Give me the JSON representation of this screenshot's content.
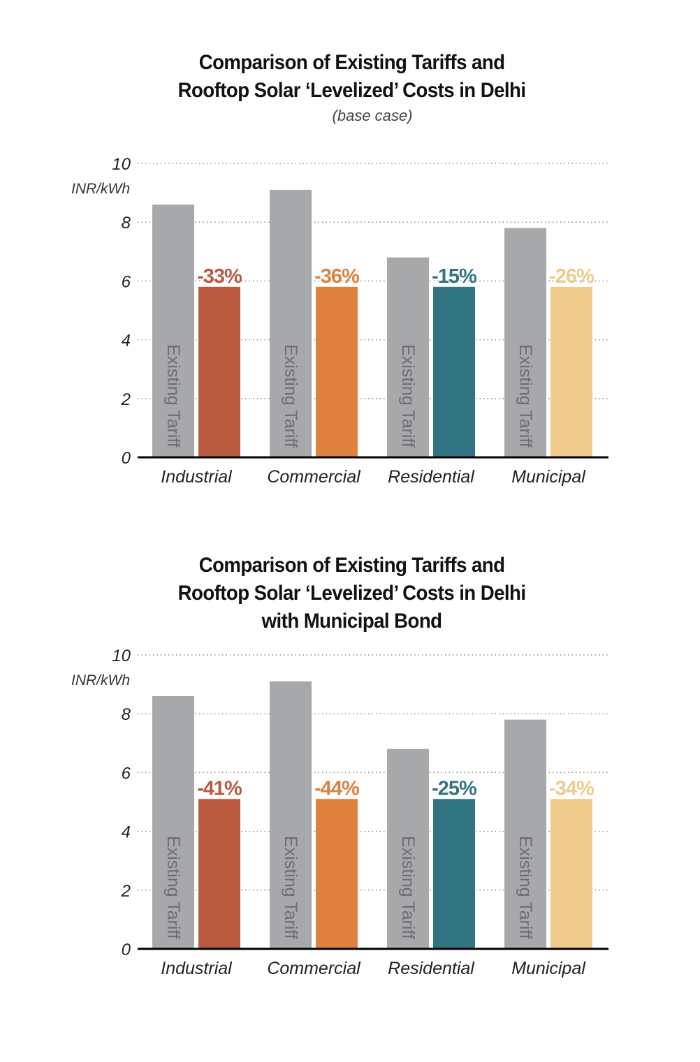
{
  "charts": [
    {
      "title_lines": [
        "Comparison of Existing Tariffs and",
        "Rooftop Solar ‘Levelized’ Costs in Delhi"
      ],
      "subtitle": "(base case)"
    },
    {
      "title_lines": [
        "Comparison of Existing Tariffs and",
        "Rooftop Solar ‘Levelized’ Costs in Delhi",
        "with Municipal Bond"
      ],
      "subtitle": ""
    }
  ],
  "chart_data": [
    {
      "type": "bar",
      "title": "Comparison of Existing Tariffs and Rooftop Solar ‘Levelized’ Costs in Delhi",
      "subtitle": "(base case)",
      "categories": [
        "Industrial",
        "Commercial",
        "Residential",
        "Municipal"
      ],
      "ylabel": "INR/kWh",
      "ylim": [
        0,
        10
      ],
      "yticks": [
        0,
        2,
        4,
        6,
        8,
        10
      ],
      "grid": true,
      "series": [
        {
          "values": [
            8.6,
            9.1,
            6.8,
            7.8
          ],
          "color": "#a7a8aa",
          "bar_labels": [
            "Existing Tariff",
            "Existing Tariff",
            "Existing Tariff",
            "Existing Tariff"
          ]
        },
        {
          "values": [
            5.8,
            5.8,
            5.8,
            5.8
          ],
          "colors": [
            "#b85a3e",
            "#dc823e",
            "#317482",
            "#efca8b"
          ],
          "data_labels": [
            "-33%",
            "-36%",
            "-15%",
            "-26%"
          ]
        }
      ]
    },
    {
      "type": "bar",
      "title": "Comparison of Existing Tariffs and Rooftop Solar ‘Levelized’ Costs in Delhi with Municipal Bond",
      "categories": [
        "Industrial",
        "Commercial",
        "Residential",
        "Municipal"
      ],
      "ylabel": "INR/kWh",
      "ylim": [
        0,
        10
      ],
      "yticks": [
        0,
        2,
        4,
        6,
        8,
        10
      ],
      "grid": true,
      "series": [
        {
          "values": [
            8.6,
            9.1,
            6.8,
            7.8
          ],
          "color": "#a7a8aa",
          "bar_labels": [
            "Existing Tariff",
            "Existing Tariff",
            "Existing Tariff",
            "Existing Tariff"
          ]
        },
        {
          "values": [
            5.1,
            5.1,
            5.1,
            5.1
          ],
          "colors": [
            "#b85a3e",
            "#dc823e",
            "#317482",
            "#efca8b"
          ],
          "data_labels": [
            "-41%",
            "-44%",
            "-25%",
            "-34%"
          ]
        }
      ]
    }
  ]
}
